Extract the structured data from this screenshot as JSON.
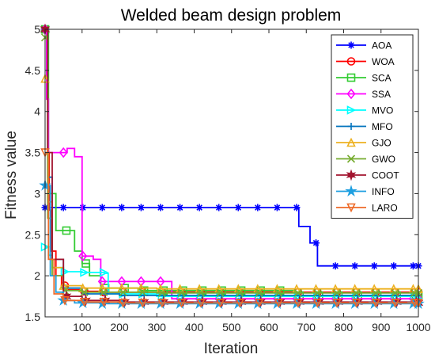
{
  "chart_data": {
    "type": "line",
    "title": "Welded beam design problem",
    "xlabel": "Iteration",
    "ylabel": "Fitness value",
    "xlim": [
      1,
      1000
    ],
    "ylim": [
      1.5,
      5
    ],
    "xticks": [
      100,
      200,
      300,
      400,
      500,
      600,
      700,
      800,
      900,
      1000
    ],
    "yticks": [
      1.5,
      2,
      2.5,
      3,
      3.5,
      4,
      4.5,
      5
    ],
    "grid": false,
    "legend_position": "top-right",
    "series": [
      {
        "name": "AOA",
        "color": "#0000ff",
        "marker": "asterisk",
        "x": [
          1,
          50,
          640,
          670,
          680,
          700,
          710,
          730,
          1000
        ],
        "y": [
          2.83,
          2.83,
          2.83,
          2.83,
          2.6,
          2.6,
          2.4,
          2.12,
          2.12
        ]
      },
      {
        "name": "WOA",
        "color": "#ff0000",
        "marker": "circle",
        "x": [
          1,
          8,
          12,
          18,
          30,
          45,
          60,
          100,
          150,
          300,
          500,
          1000
        ],
        "y": [
          5.0,
          3.5,
          2.8,
          2.3,
          2.0,
          1.88,
          1.83,
          1.81,
          1.8,
          1.8,
          1.8,
          1.8
        ]
      },
      {
        "name": "SCA",
        "color": "#33cc33",
        "marker": "square",
        "x": [
          1,
          10,
          30,
          60,
          80,
          100,
          120,
          150,
          250,
          660,
          670,
          1000
        ],
        "y": [
          5.0,
          3.0,
          2.55,
          2.55,
          2.3,
          2.15,
          2.0,
          1.85,
          1.82,
          1.82,
          1.76,
          1.76
        ]
      },
      {
        "name": "SSA",
        "color": "#ff00ff",
        "marker": "diamond",
        "x": [
          1,
          5,
          10,
          40,
          60,
          80,
          100,
          130,
          150,
          330,
          340,
          1000
        ],
        "y": [
          5.0,
          4.15,
          3.5,
          3.5,
          3.55,
          3.45,
          2.24,
          2.2,
          1.93,
          1.93,
          1.72,
          1.72
        ]
      },
      {
        "name": "MVO",
        "color": "#00ffff",
        "marker": "triangle-right",
        "x": [
          1,
          10,
          20,
          50,
          100,
          160,
          170,
          300,
          1000
        ],
        "y": [
          2.35,
          2.25,
          2.1,
          2.05,
          2.04,
          2.03,
          1.78,
          1.75,
          1.72
        ]
      },
      {
        "name": "MFO",
        "color": "#0072bd",
        "marker": "plus",
        "x": [
          1,
          8,
          20,
          50,
          100,
          200,
          1000
        ],
        "y": [
          5.0,
          3.2,
          2.2,
          1.85,
          1.78,
          1.76,
          1.76
        ]
      },
      {
        "name": "GJO",
        "color": "#edb120",
        "marker": "triangle-up",
        "x": [
          1,
          8,
          20,
          50,
          100,
          300,
          1000
        ],
        "y": [
          4.4,
          2.9,
          2.1,
          1.88,
          1.85,
          1.84,
          1.84
        ]
      },
      {
        "name": "GWO",
        "color": "#77ac30",
        "marker": "x",
        "x": [
          1,
          8,
          20,
          50,
          100,
          300,
          1000
        ],
        "y": [
          4.9,
          2.7,
          2.0,
          1.82,
          1.8,
          1.79,
          1.79
        ]
      },
      {
        "name": "COOT",
        "color": "#a2142f",
        "marker": "star6",
        "x": [
          1,
          8,
          20,
          50,
          100,
          200,
          1000
        ],
        "y": [
          5.0,
          3.5,
          2.2,
          1.75,
          1.7,
          1.68,
          1.67
        ]
      },
      {
        "name": "INFO",
        "color": "#1e9fe0",
        "marker": "star5",
        "x": [
          1,
          5,
          15,
          30,
          50,
          80,
          150,
          1000
        ],
        "y": [
          3.1,
          3.1,
          2.0,
          1.8,
          1.7,
          1.67,
          1.66,
          1.66
        ]
      },
      {
        "name": "LARO",
        "color": "#ee6a28",
        "marker": "triangle-down",
        "x": [
          1,
          10,
          25,
          50,
          100,
          200,
          1000
        ],
        "y": [
          3.5,
          2.2,
          1.78,
          1.7,
          1.68,
          1.67,
          1.67
        ]
      }
    ]
  }
}
